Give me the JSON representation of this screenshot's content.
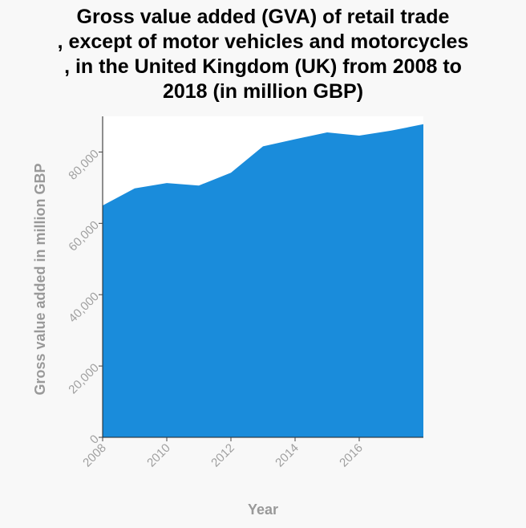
{
  "chart_data": {
    "type": "area",
    "title_lines": [
      "Gross value added (GVA) of retail trade",
      ", except of motor vehicles and motorcycles",
      ", in the United Kingdom (UK) from 2008 to",
      "2018 (in million GBP)"
    ],
    "xlabel": "Year",
    "ylabel": "Gross value added in million GBP",
    "x": [
      2008,
      2009,
      2010,
      2011,
      2012,
      2013,
      2014,
      2015,
      2016,
      2017,
      2018
    ],
    "values": [
      65000,
      69800,
      71300,
      70600,
      74200,
      81600,
      83600,
      85500,
      84600,
      86000,
      87800
    ],
    "xlim": [
      2008,
      2018
    ],
    "ylim": [
      0,
      90000
    ],
    "xticks": [
      2008,
      2010,
      2012,
      2014,
      2016
    ],
    "xtick_labels": [
      "2008",
      "2010",
      "2012",
      "2014",
      "2016"
    ],
    "yticks": [
      0,
      20000,
      40000,
      60000,
      80000
    ],
    "ytick_labels": [
      "0",
      "20,000",
      "40,000",
      "60,000",
      "80,000"
    ],
    "grid": false,
    "colors": {
      "fill": "#1a8cdb",
      "background": "#f8f8f8",
      "plot_background": "#ffffff"
    }
  }
}
